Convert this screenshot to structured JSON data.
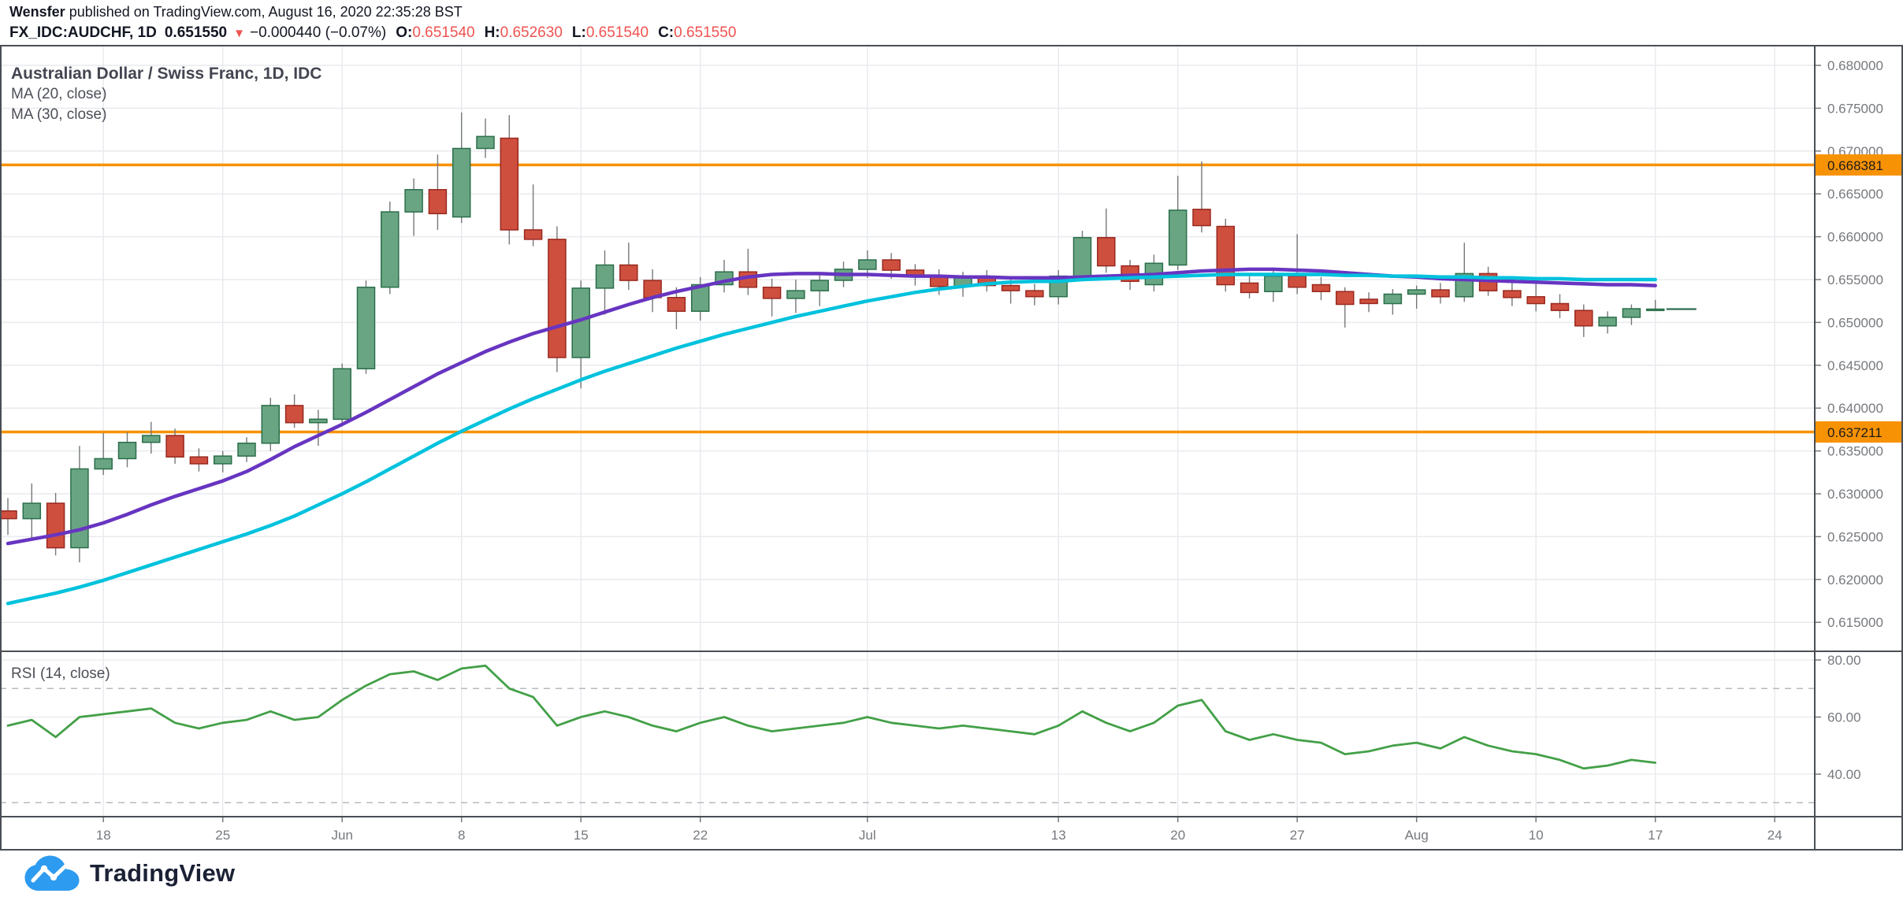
{
  "header": {
    "author": "Wensfer",
    "published_text": " published on TradingView.com, August 16, 2020 22:35:28 BST",
    "symbol": "FX_IDC:AUDCHF, 1D",
    "last_price": "0.651550",
    "direction_icon": "▼",
    "change": "−0.000440 (−0.07%)",
    "o_label": "O:",
    "o_value": "0.651540",
    "h_label": "H:",
    "h_value": "0.652630",
    "l_label": "L:",
    "l_value": "0.651540",
    "c_label": "C:",
    "c_value": "0.651550"
  },
  "legend": {
    "title": "Australian Dollar / Swiss Franc, 1D, IDC",
    "ma20": "MA (20, close)",
    "ma30": "MA (30, close)",
    "rsi": "RSI (14, close)"
  },
  "footer": {
    "brand": "TradingView"
  },
  "chart_data": {
    "type": "candlestick",
    "title": "Australian Dollar / Swiss Franc, 1D, IDC",
    "price_pane": {
      "ylim": [
        0.6116,
        0.6824
      ],
      "yticks": [
        {
          "v": 0.68,
          "label": "0.680000"
        },
        {
          "v": 0.675,
          "label": "0.675000"
        },
        {
          "v": 0.67,
          "label": "0.670000"
        },
        {
          "v": 0.665,
          "label": "0.665000"
        },
        {
          "v": 0.66,
          "label": "0.660000"
        },
        {
          "v": 0.655,
          "label": "0.655000"
        },
        {
          "v": 0.65,
          "label": "0.650000"
        },
        {
          "v": 0.645,
          "label": "0.645000"
        },
        {
          "v": 0.64,
          "label": "0.640000"
        },
        {
          "v": 0.635,
          "label": "0.635000"
        },
        {
          "v": 0.63,
          "label": "0.630000"
        },
        {
          "v": 0.625,
          "label": "0.625000"
        },
        {
          "v": 0.62,
          "label": "0.620000"
        },
        {
          "v": 0.615,
          "label": "0.615000"
        }
      ],
      "hlines": [
        {
          "v": 0.668381,
          "label": "0.668381"
        },
        {
          "v": 0.637211,
          "label": "0.637211"
        }
      ],
      "last_close": 0.65155,
      "candles": [
        [
          0.628,
          0.6295,
          0.6252,
          0.6271
        ],
        [
          0.6271,
          0.6312,
          0.6248,
          0.6289
        ],
        [
          0.6289,
          0.6301,
          0.6228,
          0.6237
        ],
        [
          0.6237,
          0.6356,
          0.622,
          0.6329
        ],
        [
          0.6329,
          0.6371,
          0.6322,
          0.6341
        ],
        [
          0.6341,
          0.6372,
          0.6331,
          0.636
        ],
        [
          0.636,
          0.6384,
          0.6347,
          0.6368
        ],
        [
          0.6368,
          0.6376,
          0.6335,
          0.6343
        ],
        [
          0.6343,
          0.6353,
          0.6326,
          0.6335
        ],
        [
          0.6335,
          0.635,
          0.6325,
          0.6344
        ],
        [
          0.6344,
          0.6366,
          0.6337,
          0.6359
        ],
        [
          0.6359,
          0.6412,
          0.635,
          0.6403
        ],
        [
          0.6403,
          0.6416,
          0.6377,
          0.6383
        ],
        [
          0.6383,
          0.6398,
          0.6356,
          0.6387
        ],
        [
          0.6387,
          0.6452,
          0.638,
          0.6446
        ],
        [
          0.6446,
          0.6549,
          0.644,
          0.6541
        ],
        [
          0.6541,
          0.6641,
          0.6533,
          0.6629
        ],
        [
          0.6629,
          0.6668,
          0.6601,
          0.6655
        ],
        [
          0.6655,
          0.6696,
          0.6608,
          0.6627
        ],
        [
          0.6623,
          0.6745,
          0.6616,
          0.6703
        ],
        [
          0.6703,
          0.6738,
          0.6692,
          0.6717
        ],
        [
          0.6715,
          0.6742,
          0.6591,
          0.6608
        ],
        [
          0.6608,
          0.6661,
          0.6589,
          0.6597
        ],
        [
          0.6597,
          0.6612,
          0.6442,
          0.6459
        ],
        [
          0.6459,
          0.6549,
          0.6423,
          0.654
        ],
        [
          0.654,
          0.6584,
          0.6509,
          0.6567
        ],
        [
          0.6567,
          0.6593,
          0.6538,
          0.6549
        ],
        [
          0.6549,
          0.6562,
          0.6512,
          0.6529
        ],
        [
          0.6529,
          0.6541,
          0.6492,
          0.6513
        ],
        [
          0.6513,
          0.6553,
          0.6502,
          0.6544
        ],
        [
          0.6544,
          0.6573,
          0.6535,
          0.6559
        ],
        [
          0.6559,
          0.6586,
          0.6532,
          0.6541
        ],
        [
          0.6541,
          0.6551,
          0.6507,
          0.6528
        ],
        [
          0.6528,
          0.655,
          0.6511,
          0.6537
        ],
        [
          0.6537,
          0.6558,
          0.6519,
          0.6549
        ],
        [
          0.6549,
          0.6571,
          0.6541,
          0.6562
        ],
        [
          0.6562,
          0.6584,
          0.6552,
          0.6573
        ],
        [
          0.6573,
          0.6581,
          0.6551,
          0.6561
        ],
        [
          0.6561,
          0.6568,
          0.6543,
          0.6553
        ],
        [
          0.6553,
          0.6562,
          0.6532,
          0.6542
        ],
        [
          0.6542,
          0.6559,
          0.653,
          0.6552
        ],
        [
          0.6552,
          0.6561,
          0.6536,
          0.6543
        ],
        [
          0.6543,
          0.6553,
          0.6522,
          0.6537
        ],
        [
          0.6537,
          0.6545,
          0.652,
          0.653
        ],
        [
          0.653,
          0.6561,
          0.6521,
          0.6554
        ],
        [
          0.6554,
          0.6607,
          0.6548,
          0.6599
        ],
        [
          0.6599,
          0.6633,
          0.6558,
          0.6566
        ],
        [
          0.6566,
          0.6573,
          0.6538,
          0.6548
        ],
        [
          0.6544,
          0.6579,
          0.6536,
          0.6569
        ],
        [
          0.6567,
          0.6671,
          0.6561,
          0.6631
        ],
        [
          0.6632,
          0.6688,
          0.6605,
          0.6613
        ],
        [
          0.6612,
          0.6621,
          0.6536,
          0.6544
        ],
        [
          0.6546,
          0.6557,
          0.6528,
          0.6535
        ],
        [
          0.6536,
          0.6561,
          0.6524,
          0.6554
        ],
        [
          0.6554,
          0.6603,
          0.6533,
          0.6541
        ],
        [
          0.6544,
          0.6553,
          0.6526,
          0.6536
        ],
        [
          0.6536,
          0.6541,
          0.6494,
          0.6521
        ],
        [
          0.6527,
          0.6535,
          0.6512,
          0.6522
        ],
        [
          0.6522,
          0.6539,
          0.6509,
          0.6533
        ],
        [
          0.6533,
          0.6543,
          0.6516,
          0.6538
        ],
        [
          0.6538,
          0.6546,
          0.6522,
          0.653
        ],
        [
          0.653,
          0.6593,
          0.6524,
          0.6557
        ],
        [
          0.6557,
          0.6565,
          0.6531,
          0.6537
        ],
        [
          0.6537,
          0.6549,
          0.6519,
          0.6529
        ],
        [
          0.653,
          0.6545,
          0.6513,
          0.6522
        ],
        [
          0.6522,
          0.6533,
          0.6505,
          0.6514
        ],
        [
          0.6514,
          0.6521,
          0.6483,
          0.6496
        ],
        [
          0.6496,
          0.6513,
          0.6487,
          0.6506
        ],
        [
          0.6506,
          0.6521,
          0.6497,
          0.6516
        ],
        [
          0.65154,
          0.65263,
          0.65154,
          0.65155
        ]
      ],
      "ma20": [
        0.6242,
        0.6247,
        0.6252,
        0.6258,
        0.6266,
        0.6276,
        0.6287,
        0.6297,
        0.6306,
        0.6315,
        0.6326,
        0.634,
        0.6355,
        0.6368,
        0.6381,
        0.6395,
        0.641,
        0.6425,
        0.644,
        0.6453,
        0.6466,
        0.6477,
        0.6487,
        0.6495,
        0.6503,
        0.6512,
        0.6521,
        0.6529,
        0.6536,
        0.6542,
        0.6548,
        0.6553,
        0.6556,
        0.6557,
        0.6557,
        0.6556,
        0.6556,
        0.6555,
        0.6554,
        0.6554,
        0.6553,
        0.6553,
        0.6552,
        0.6552,
        0.6552,
        0.6553,
        0.6554,
        0.6555,
        0.6556,
        0.6558,
        0.656,
        0.6561,
        0.6562,
        0.6562,
        0.6561,
        0.656,
        0.6558,
        0.6556,
        0.6554,
        0.6553,
        0.6551,
        0.655,
        0.6549,
        0.6548,
        0.6547,
        0.6546,
        0.6545,
        0.6544,
        0.6544,
        0.6543
      ],
      "ma30": [
        0.6172,
        0.6178,
        0.6184,
        0.6191,
        0.6199,
        0.6208,
        0.6217,
        0.6226,
        0.6235,
        0.6244,
        0.6253,
        0.6263,
        0.6274,
        0.6287,
        0.63,
        0.6314,
        0.6329,
        0.6344,
        0.6359,
        0.6373,
        0.6386,
        0.6399,
        0.6411,
        0.6422,
        0.6433,
        0.6443,
        0.6452,
        0.6461,
        0.647,
        0.6478,
        0.6486,
        0.6493,
        0.65,
        0.6507,
        0.6513,
        0.6519,
        0.6525,
        0.653,
        0.6535,
        0.6539,
        0.6542,
        0.6545,
        0.6547,
        0.6548,
        0.6548,
        0.655,
        0.6551,
        0.6552,
        0.6553,
        0.6554,
        0.6555,
        0.6556,
        0.6556,
        0.6556,
        0.6556,
        0.6556,
        0.6555,
        0.6555,
        0.6554,
        0.6554,
        0.6553,
        0.6553,
        0.6552,
        0.6552,
        0.6551,
        0.6551,
        0.655,
        0.655,
        0.655,
        0.655
      ]
    },
    "rsi_pane": {
      "ylim": [
        25,
        83
      ],
      "yticks": [
        {
          "v": 80,
          "label": "80.00"
        },
        {
          "v": 60,
          "label": "60.00"
        },
        {
          "v": 40,
          "label": "40.00"
        }
      ],
      "dashed_levels": [
        70,
        30
      ],
      "values": [
        57,
        59,
        53,
        60,
        61,
        62,
        63,
        58,
        56,
        58,
        59,
        62,
        59,
        60,
        66,
        71,
        75,
        76,
        73,
        77,
        78,
        70,
        67,
        57,
        60,
        62,
        60,
        57,
        55,
        58,
        60,
        57,
        55,
        56,
        57,
        58,
        60,
        58,
        57,
        56,
        57,
        56,
        55,
        54,
        57,
        62,
        58,
        55,
        58,
        64,
        66,
        55,
        52,
        54,
        52,
        51,
        47,
        48,
        50,
        51,
        49,
        53,
        50,
        48,
        47,
        45,
        42,
        43,
        45,
        44
      ]
    },
    "x_axis": {
      "labels": [
        {
          "text": "18",
          "i": 4
        },
        {
          "text": "25",
          "i": 9
        },
        {
          "text": "Jun",
          "i": 14
        },
        {
          "text": "8",
          "i": 19
        },
        {
          "text": "15",
          "i": 24
        },
        {
          "text": "22",
          "i": 29
        },
        {
          "text": "Jul",
          "i": 36
        },
        {
          "text": "13",
          "i": 44
        },
        {
          "text": "20",
          "i": 49
        },
        {
          "text": "27",
          "i": 54
        },
        {
          "text": "Aug",
          "i": 59
        },
        {
          "text": "10",
          "i": 64
        },
        {
          "text": "17",
          "i": 69
        },
        {
          "text": "24",
          "i": 74
        }
      ]
    },
    "colors": {
      "up_fill": "#6aa583",
      "up_border": "#2a6e4a",
      "down_fill": "#cf4f3f",
      "down_border": "#98291f",
      "wick": "#75787a",
      "ma20": "#6735c1",
      "ma30": "#00c2dd",
      "rsi": "#43a047",
      "hline": "#f89205",
      "grid": "#e9eaee",
      "dashed_grid": "#b7bac1",
      "frame": "#4a4e55",
      "axis_text": "#76797e",
      "price_line": "#2e6e52"
    }
  }
}
